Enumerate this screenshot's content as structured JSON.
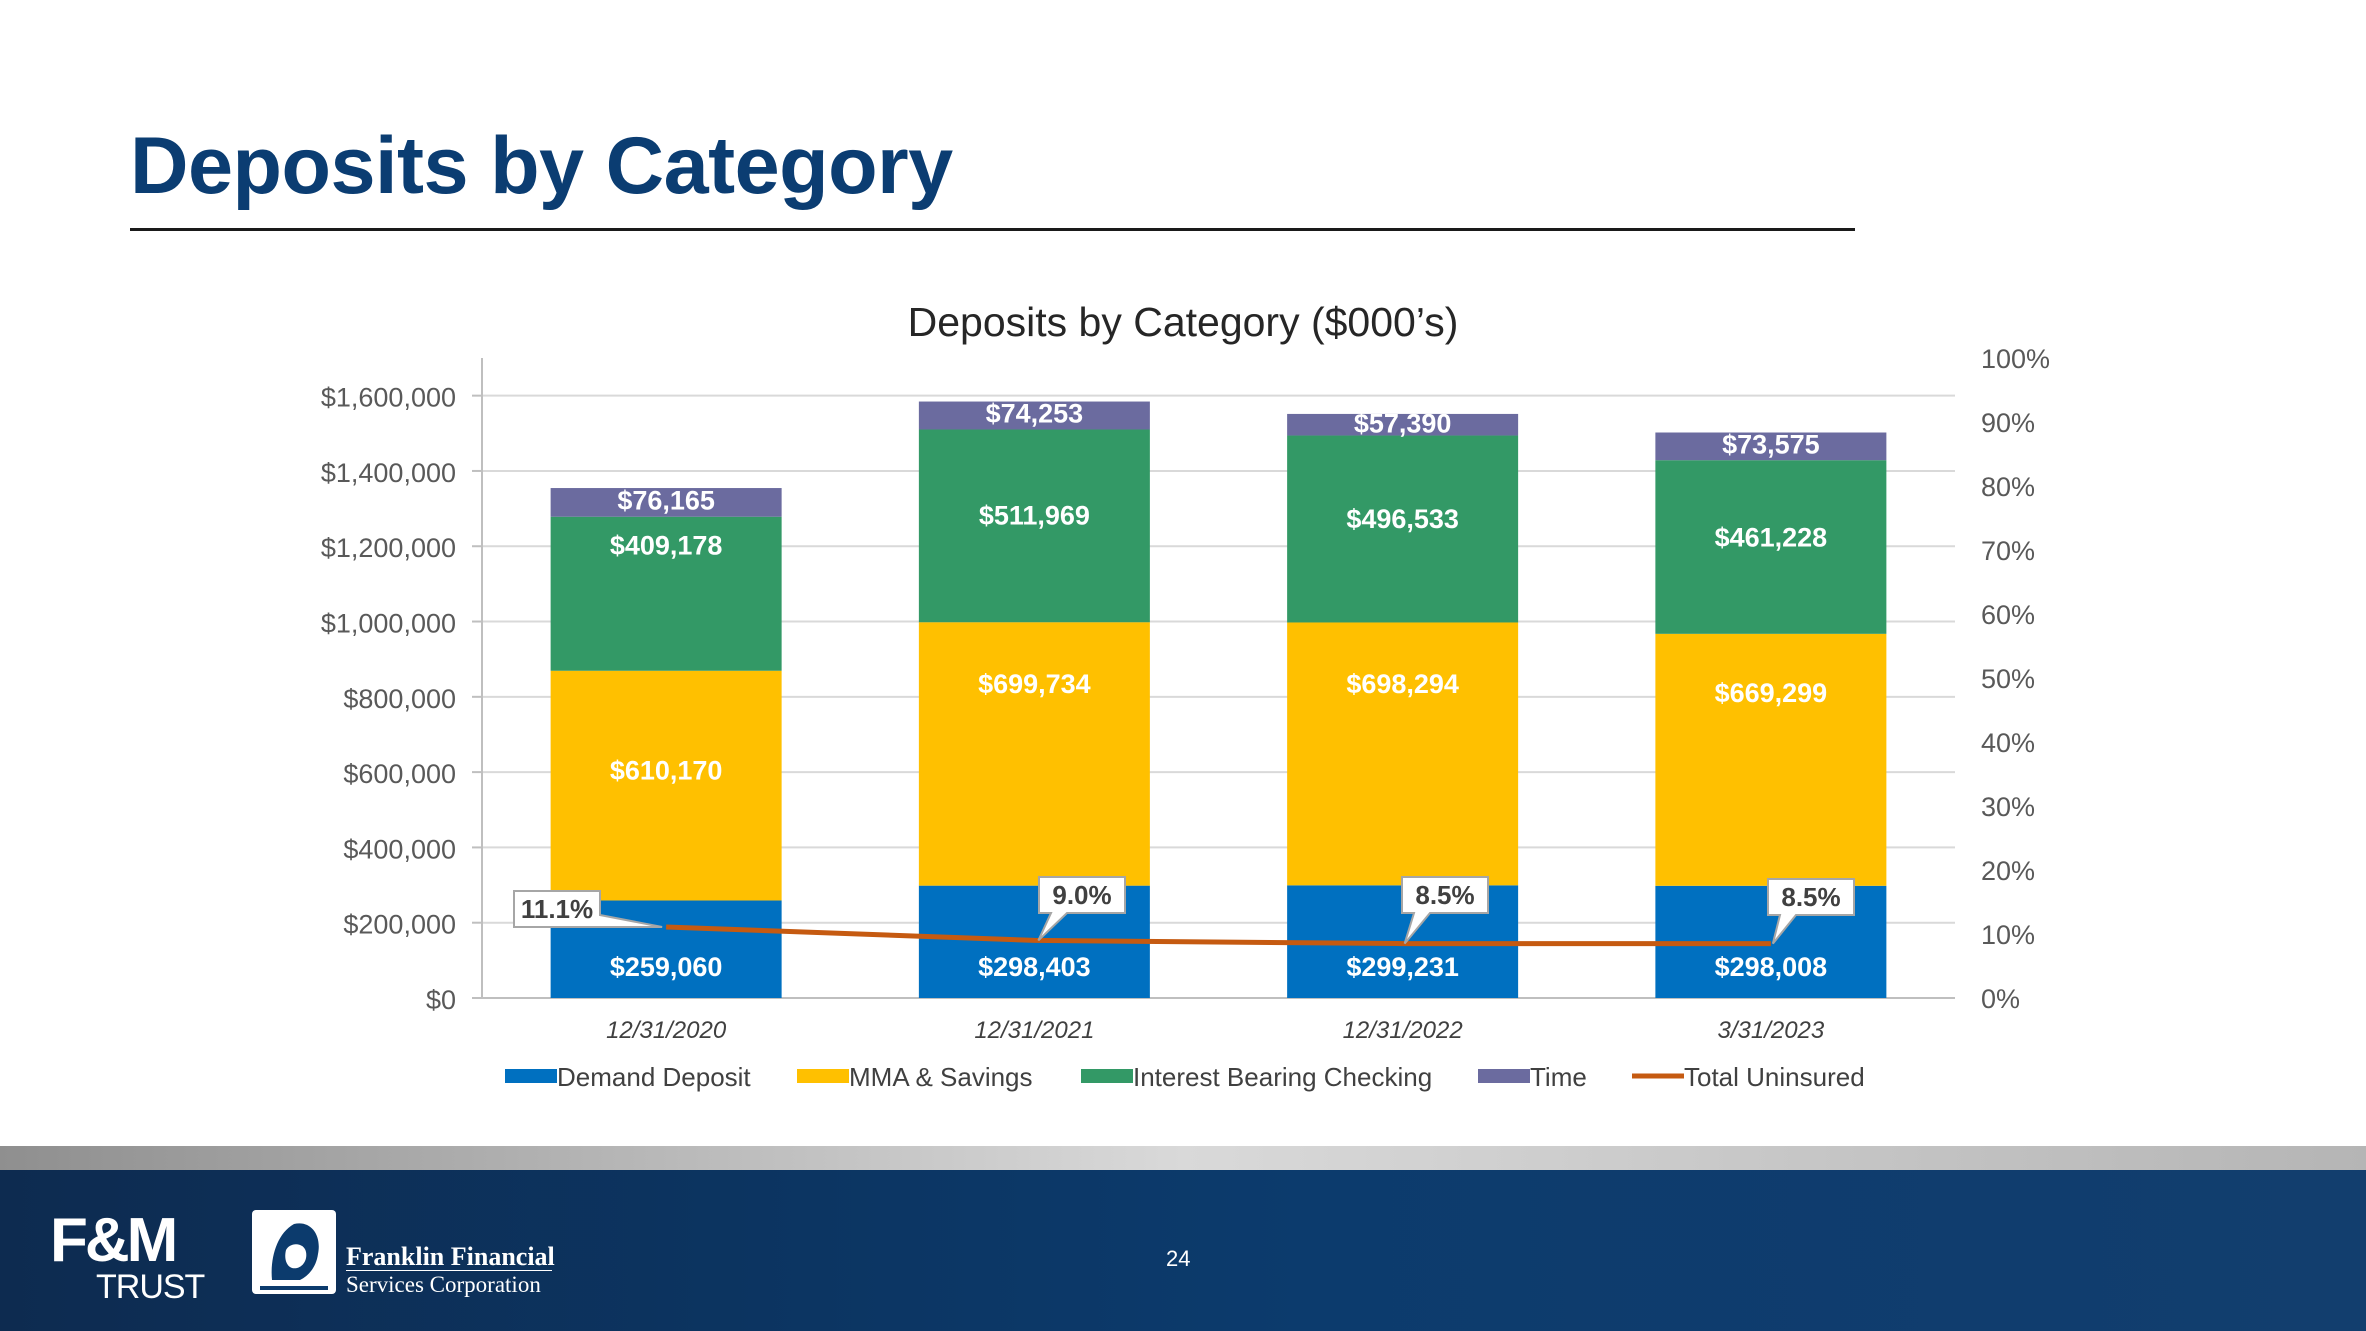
{
  "slide": {
    "title": "Deposits by Category",
    "page_number": "24"
  },
  "footer": {
    "fm_logo_main": "F&M",
    "fm_logo_sub": "TRUST",
    "company_name": "Franklin Financial",
    "company_sub": "Services Corporation"
  },
  "chart_data": {
    "type": "bar",
    "stacked": true,
    "title": "Deposits by Category ($000’s)",
    "categories": [
      "12/31/2020",
      "12/31/2021",
      "12/31/2022",
      "3/31/2023"
    ],
    "series": [
      {
        "name": "Demand Deposit",
        "color": "#0070c0",
        "values": [
          259060,
          298403,
          299231,
          298008
        ],
        "labels": [
          "$259,060",
          "$298,403",
          "$299,231",
          "$298,008"
        ]
      },
      {
        "name": "MMA & Savings",
        "color": "#ffc000",
        "values": [
          610170,
          699734,
          698294,
          669299
        ],
        "labels": [
          "$610,170",
          "$699,734",
          "$698,294",
          "$669,299"
        ]
      },
      {
        "name": "Interest Bearing Checking",
        "color": "#339966",
        "values": [
          409178,
          511969,
          496533,
          461228
        ],
        "labels": [
          "$409,178",
          "$511,969",
          "$496,533",
          "$461,228"
        ]
      },
      {
        "name": "Time",
        "color": "#6b6b9f",
        "values": [
          76165,
          74253,
          57390,
          73575
        ],
        "labels": [
          "$76,165",
          "$74,253",
          "$57,390",
          "$73,575"
        ]
      }
    ],
    "line_series": {
      "name": "Total Uninsured",
      "color": "#c55a11",
      "axis": "right",
      "values": [
        11.1,
        9.0,
        8.5,
        8.5
      ],
      "labels": [
        "11.1%",
        "9.0%",
        "8.5%",
        "8.5%"
      ]
    },
    "ylim": [
      0,
      1700000
    ],
    "y_ticks": [
      0,
      200000,
      400000,
      600000,
      800000,
      1000000,
      1200000,
      1400000,
      1600000
    ],
    "y_tick_labels": [
      "$0",
      "$200,000",
      "$400,000",
      "$600,000",
      "$800,000",
      "$1,000,000",
      "$1,200,000",
      "$1,400,000",
      "$1,600,000"
    ],
    "y2lim": [
      0,
      100
    ],
    "y2_ticks": [
      0,
      10,
      20,
      30,
      40,
      50,
      60,
      70,
      80,
      90,
      100
    ],
    "y2_tick_labels": [
      "0%",
      "10%",
      "20%",
      "30%",
      "40%",
      "50%",
      "60%",
      "70%",
      "80%",
      "90%",
      "100%"
    ],
    "grid": true,
    "legend_position": "bottom"
  }
}
